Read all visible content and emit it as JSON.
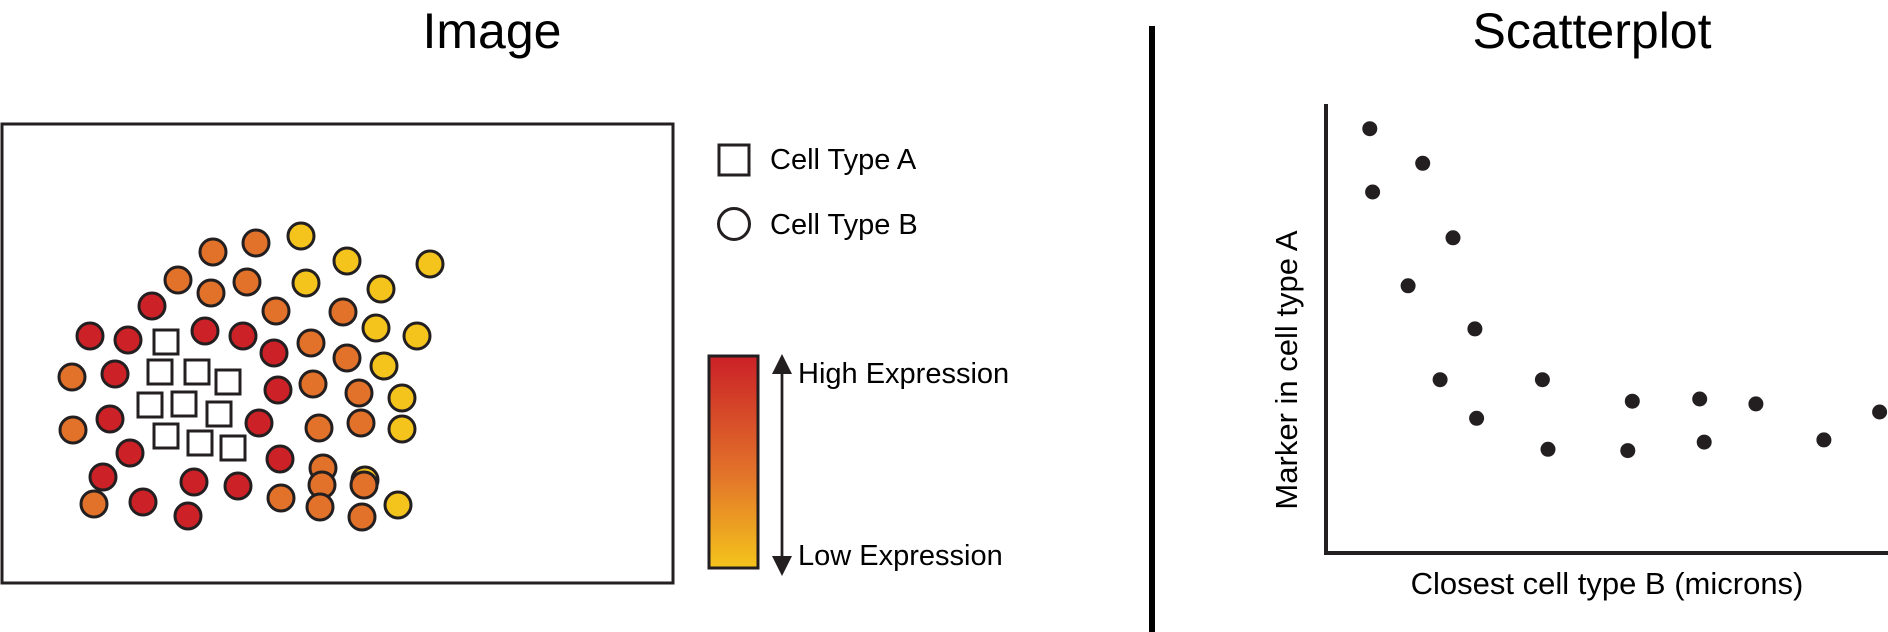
{
  "image_panel": {
    "title": "Image",
    "legend": {
      "cell_type_a": "Cell Type A",
      "cell_type_b": "Cell Type B"
    },
    "colorbar": {
      "high_label": "High Expression",
      "low_label": "Low Expression",
      "colors": [
        "#cb2127",
        "#e2722a",
        "#f4c41c"
      ]
    }
  },
  "scatter_panel": {
    "title": "Scatterplot"
  },
  "chart_data": {
    "type": "scatter",
    "title": "Scatterplot",
    "xlabel": "Closest cell type B (microns)",
    "ylabel": "Marker in cell type A",
    "xlim": [
      0,
      100
    ],
    "ylim": [
      0,
      100
    ],
    "grid": false,
    "ticks": "none",
    "points": [
      {
        "x": 7.8,
        "y": 94.5
      },
      {
        "x": 8.3,
        "y": 80.4
      },
      {
        "x": 17.2,
        "y": 86.8
      },
      {
        "x": 22.6,
        "y": 70.2
      },
      {
        "x": 14.6,
        "y": 59.5
      },
      {
        "x": 26.5,
        "y": 49.9
      },
      {
        "x": 20.3,
        "y": 38.6
      },
      {
        "x": 26.8,
        "y": 30.0
      },
      {
        "x": 38.5,
        "y": 38.6
      },
      {
        "x": 39.5,
        "y": 23.1
      },
      {
        "x": 54.5,
        "y": 33.8
      },
      {
        "x": 53.7,
        "y": 22.8
      },
      {
        "x": 66.5,
        "y": 34.3
      },
      {
        "x": 67.3,
        "y": 24.7
      },
      {
        "x": 76.5,
        "y": 33.2
      },
      {
        "x": 88.6,
        "y": 25.2
      },
      {
        "x": 98.5,
        "y": 31.4
      }
    ]
  }
}
